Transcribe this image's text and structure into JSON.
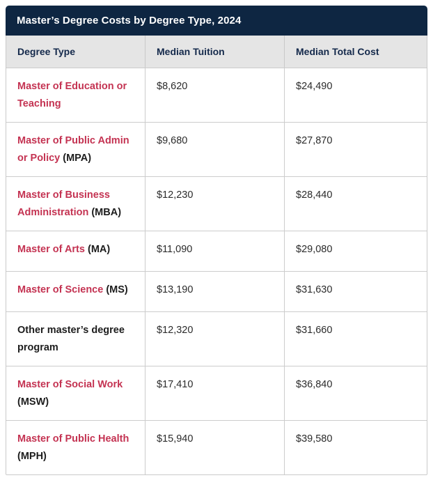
{
  "card": {
    "title": "Master’s Degree Costs by Degree Type, 2024",
    "colors": {
      "title_bar_bg": "#0e2642",
      "title_text": "#ffffff",
      "column_header_bg": "#e5e5e5",
      "column_header_text": "#14294b",
      "link_red": "#c43352",
      "body_text": "#2b2b2b",
      "border": "#cccccc"
    }
  },
  "table": {
    "columns": [
      "Degree Type",
      "Median Tuition",
      "Median Total Cost"
    ],
    "rows": [
      {
        "degree_link": "Master of Education or Teaching",
        "degree_rest": "",
        "tuition": "$8,620",
        "total_cost": "$24,490"
      },
      {
        "degree_link": "Master of Public Admin or Policy",
        "degree_rest": " (MPA)",
        "tuition": "$9,680",
        "total_cost": "$27,870"
      },
      {
        "degree_link": "Master of Business Administration",
        "degree_rest": " (MBA)",
        "tuition": "$12,230",
        "total_cost": "$28,440"
      },
      {
        "degree_link": "Master of Arts",
        "degree_rest": " (MA)",
        "tuition": "$11,090",
        "total_cost": "$29,080"
      },
      {
        "degree_link": "Master of Science",
        "degree_rest": " (MS)",
        "tuition": "$13,190",
        "total_cost": "$31,630"
      },
      {
        "degree_link": "",
        "degree_rest": "Other master’s degree program",
        "tuition": "$12,320",
        "total_cost": "$31,660"
      },
      {
        "degree_link": "Master of Social Work",
        "degree_rest": " (MSW)",
        "tuition": "$17,410",
        "total_cost": "$36,840"
      },
      {
        "degree_link": "Master of Public Health",
        "degree_rest": " (MPH)",
        "tuition": "$15,940",
        "total_cost": "$39,580"
      }
    ]
  },
  "chart_data": {
    "type": "table",
    "title": "Master’s Degree Costs by Degree Type, 2024",
    "columns": [
      "Degree Type",
      "Median Tuition",
      "Median Total Cost"
    ],
    "rows": [
      [
        "Master of Education or Teaching",
        8620,
        24490
      ],
      [
        "Master of Public Admin or Policy (MPA)",
        9680,
        27870
      ],
      [
        "Master of Business Administration (MBA)",
        12230,
        28440
      ],
      [
        "Master of Arts (MA)",
        11090,
        29080
      ],
      [
        "Master of Science (MS)",
        13190,
        31630
      ],
      [
        "Other master’s degree program",
        12320,
        31660
      ],
      [
        "Master of Social Work (MSW)",
        17410,
        36840
      ],
      [
        "Master of Public Health (MPH)",
        15940,
        39580
      ]
    ]
  }
}
